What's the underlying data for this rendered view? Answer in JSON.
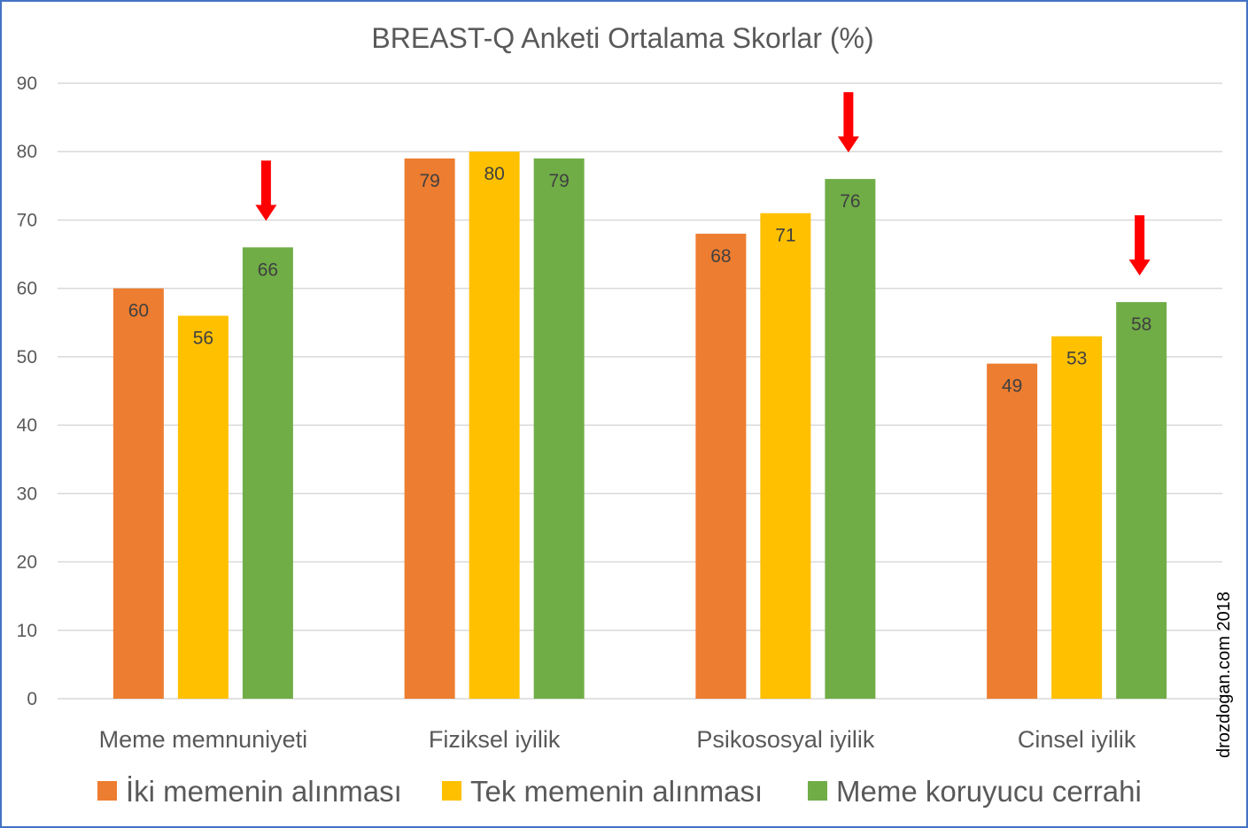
{
  "chart_data": {
    "type": "bar",
    "title": "BREAST-Q Anketi Ortalama Skorlar (%)",
    "xlabel": "",
    "ylabel": "",
    "ylim": [
      0,
      90
    ],
    "yticks": [
      0,
      10,
      20,
      30,
      40,
      50,
      60,
      70,
      80,
      90
    ],
    "grid": true,
    "legend_position": "bottom",
    "categories": [
      "Meme memnuniyeti",
      "Fiziksel iyilik",
      "Psikososyal iyilik",
      "Cinsel iyilik"
    ],
    "series": [
      {
        "name": "İki memenin alınması",
        "color": "#ed7d31",
        "values": [
          60,
          79,
          68,
          49
        ]
      },
      {
        "name": "Tek memenin alınması",
        "color": "#ffc000",
        "values": [
          56,
          80,
          71,
          53
        ]
      },
      {
        "name": "Meme koruyucu cerrahi",
        "color": "#70ad47",
        "values": [
          66,
          79,
          76,
          58
        ]
      }
    ],
    "annotations": [
      {
        "type": "arrow",
        "color": "#ff0000",
        "category": "Meme memnuniyeti",
        "series": "Meme koruyucu cerrahi"
      },
      {
        "type": "arrow",
        "color": "#ff0000",
        "category": "Psikososyal iyilik",
        "series": "Meme koruyucu cerrahi"
      },
      {
        "type": "arrow",
        "color": "#ff0000",
        "category": "Cinsel iyilik",
        "series": "Meme koruyucu cerrahi"
      }
    ]
  },
  "watermark": "drozdogan.com 2018",
  "colors": {
    "border": "#4472c4",
    "gridline": "#d9d9d9",
    "text": "#595959"
  }
}
